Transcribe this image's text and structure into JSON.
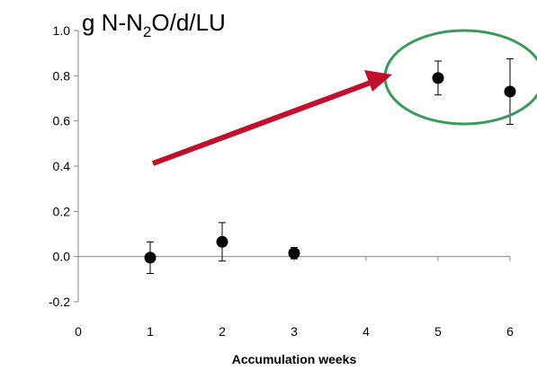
{
  "chart_data": {
    "type": "scatter",
    "title": "",
    "unit_label": {
      "prefix": "g N-N",
      "sub": "2",
      "suffix": "O/d/LU"
    },
    "xlabel": "Accumulation weeks",
    "ylabel": "",
    "xlim": [
      0,
      6
    ],
    "ylim": [
      -0.2,
      1.0
    ],
    "x_ticks": [
      "0",
      "1",
      "2",
      "3",
      "4",
      "5",
      "6"
    ],
    "y_ticks": [
      "-0.2",
      "0.0",
      "0.2",
      "0.4",
      "0.6",
      "0.8",
      "1.0"
    ],
    "grid": false,
    "series": [
      {
        "points": [
          {
            "x": 1,
            "y": -0.005,
            "err_low": 0.07,
            "err_high": 0.07
          },
          {
            "x": 2,
            "y": 0.065,
            "err_low": 0.085,
            "err_high": 0.085
          },
          {
            "x": 3,
            "y": 0.015,
            "err_low": 0.025,
            "err_high": 0.025
          },
          {
            "x": 5,
            "y": 0.79,
            "err_low": 0.075,
            "err_high": 0.075
          },
          {
            "x": 6,
            "y": 0.73,
            "err_low": 0.145,
            "err_high": 0.145
          }
        ]
      }
    ],
    "annotations": {
      "arrow_color": "#c0102e",
      "highlight_color": "#3a9a5a"
    }
  }
}
